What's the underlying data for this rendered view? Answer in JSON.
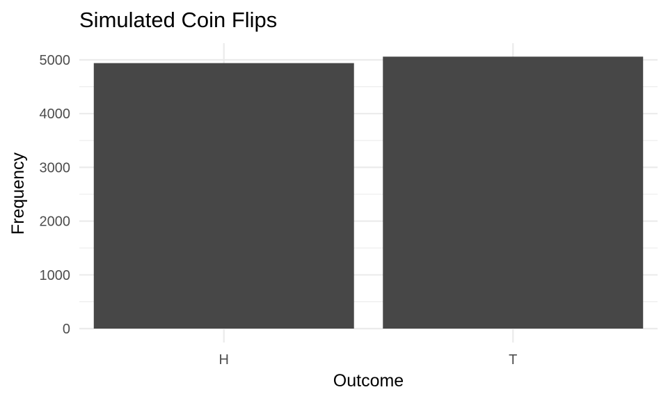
{
  "chart_data": {
    "type": "bar",
    "title": "Simulated Coin Flips",
    "xlabel": "Outcome",
    "ylabel": "Frequency",
    "categories": [
      "H",
      "T"
    ],
    "values": [
      4940,
      5060
    ],
    "ylim": [
      0,
      5000
    ],
    "yticks": [
      0,
      1000,
      2000,
      3000,
      4000,
      5000
    ],
    "ytick_labels": [
      "0",
      "1000",
      "2000",
      "3000",
      "4000",
      "5000"
    ],
    "grid": true,
    "legend": "none",
    "colors": {
      "bar": "#474747",
      "grid": "#ebebeb",
      "tick_text": "#4d4d4d",
      "background": "#ffffff"
    }
  }
}
